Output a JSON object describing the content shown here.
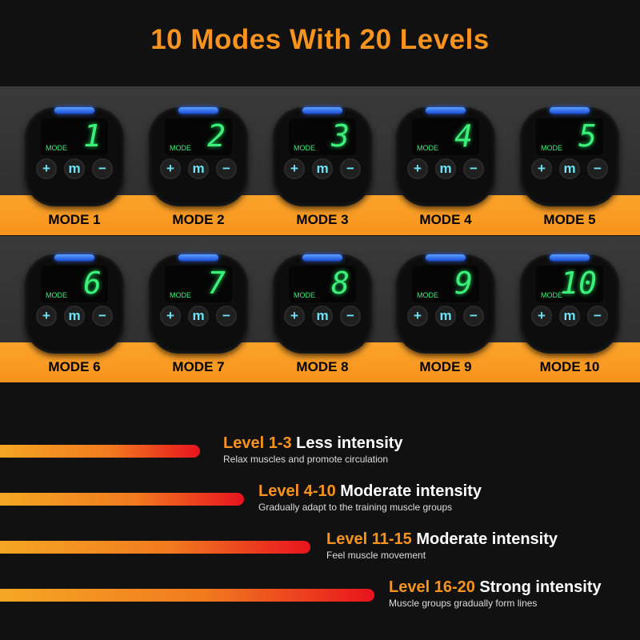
{
  "title": "10 Modes With 20 Levels",
  "colors": {
    "accent": "#f7931e",
    "display": "#3df07a",
    "button": "#6fe0f5"
  },
  "device": {
    "screen_label": "MODE",
    "buttons": [
      "+",
      "m",
      "−"
    ]
  },
  "modes": [
    {
      "digit": "1",
      "label": "MODE 1"
    },
    {
      "digit": "2",
      "label": "MODE 2"
    },
    {
      "digit": "3",
      "label": "MODE 3"
    },
    {
      "digit": "4",
      "label": "MODE 4"
    },
    {
      "digit": "5",
      "label": "MODE 5"
    },
    {
      "digit": "6",
      "label": "MODE 6"
    },
    {
      "digit": "7",
      "label": "MODE 7"
    },
    {
      "digit": "8",
      "label": "MODE 8"
    },
    {
      "digit": "9",
      "label": "MODE 9"
    },
    {
      "digit": "10",
      "label": "MODE 10"
    }
  ],
  "levels": [
    {
      "range": "Level 1-3",
      "intensity": "Less intensity",
      "desc": "Relax muscles and promote circulation"
    },
    {
      "range": "Level 4-10",
      "intensity": "Moderate intensity",
      "desc": "Gradually adapt to the training muscle groups"
    },
    {
      "range": "Level 11-15",
      "intensity": "Moderate intensity",
      "desc": "Feel muscle movement"
    },
    {
      "range": "Level 16-20",
      "intensity": "Strong intensity",
      "desc": "Muscle groups gradually form lines"
    }
  ]
}
